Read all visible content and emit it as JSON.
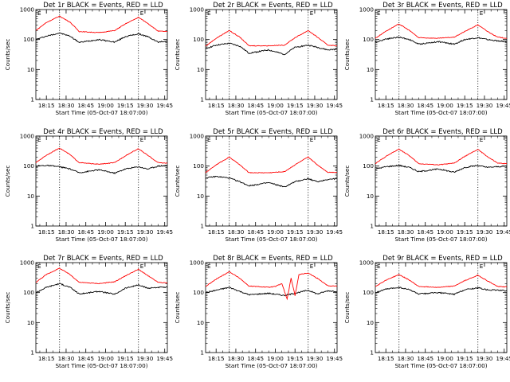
{
  "shared": {
    "xlabel": "Start Time (05-Oct-07 18:07:00)",
    "ylabel": "Counts/sec",
    "x_tick_labels": [
      "18:15",
      "18:30",
      "18:45",
      "19:00",
      "19:15",
      "19:30",
      "19:45"
    ],
    "y_tick_labels": [
      "1",
      "10",
      "100",
      "1000"
    ],
    "corner_marks": {
      "left": "E",
      "right": "E"
    },
    "colors": {
      "events": "#000000",
      "lld": "#ff0000",
      "axis": "#000000"
    }
  },
  "chart_data": [
    {
      "type": "line",
      "title": "Det 1r BLACK = Events, RED = LLD",
      "xlim": [
        "18:07",
        "19:47"
      ],
      "ylim": [
        1,
        1000
      ],
      "y_scale": "log",
      "vlines": [
        "18:25",
        "19:25"
      ],
      "series": [
        {
          "name": "Events",
          "color": "#000000",
          "lld": false,
          "x": [
            "18:07",
            "18:15",
            "18:25",
            "18:33",
            "18:40",
            "18:55",
            "19:07",
            "19:15",
            "19:25",
            "19:32",
            "19:40",
            "19:47"
          ],
          "y": [
            100,
            130,
            165,
            130,
            80,
            100,
            82,
            125,
            155,
            125,
            82,
            90
          ]
        },
        {
          "name": "LLD",
          "color": "#ff0000",
          "lld": true,
          "x": [
            "18:07",
            "18:15",
            "18:25",
            "18:33",
            "18:40",
            "18:55",
            "19:07",
            "19:15",
            "19:25",
            "19:32",
            "19:40",
            "19:47"
          ],
          "y": [
            200,
            370,
            600,
            380,
            185,
            170,
            200,
            330,
            550,
            350,
            190,
            185
          ]
        }
      ]
    },
    {
      "type": "line",
      "title": "Det 2r BLACK = Events, RED = LLD",
      "xlim": [
        "18:07",
        "19:47"
      ],
      "ylim": [
        1,
        1000
      ],
      "y_scale": "log",
      "vlines": [
        "18:25",
        "19:25"
      ],
      "series": [
        {
          "name": "Events",
          "color": "#000000",
          "lld": false,
          "x": [
            "18:07",
            "18:15",
            "18:25",
            "18:33",
            "18:40",
            "18:55",
            "19:07",
            "19:15",
            "19:25",
            "19:32",
            "19:40",
            "19:47"
          ],
          "y": [
            50,
            65,
            75,
            60,
            35,
            45,
            32,
            55,
            65,
            55,
            45,
            48
          ]
        },
        {
          "name": "LLD",
          "color": "#ff0000",
          "lld": true,
          "x": [
            "18:07",
            "18:15",
            "18:25",
            "18:33",
            "18:40",
            "18:55",
            "19:07",
            "19:15",
            "19:25",
            "19:32",
            "19:40",
            "19:47"
          ],
          "y": [
            60,
            110,
            200,
            120,
            62,
            62,
            65,
            115,
            200,
            120,
            65,
            62
          ]
        }
      ]
    },
    {
      "type": "line",
      "title": "Det 3r BLACK = Events, RED = LLD",
      "xlim": [
        "18:07",
        "19:47"
      ],
      "ylim": [
        1,
        1000
      ],
      "y_scale": "log",
      "vlines": [
        "18:25",
        "19:25"
      ],
      "series": [
        {
          "name": "Events",
          "color": "#000000",
          "lld": false,
          "x": [
            "18:07",
            "18:15",
            "18:25",
            "18:33",
            "18:40",
            "18:55",
            "19:07",
            "19:15",
            "19:25",
            "19:32",
            "19:40",
            "19:47"
          ],
          "y": [
            80,
            105,
            120,
            100,
            70,
            85,
            70,
            100,
            115,
            100,
            90,
            85
          ]
        },
        {
          "name": "LLD",
          "color": "#ff0000",
          "lld": true,
          "x": [
            "18:07",
            "18:15",
            "18:25",
            "18:33",
            "18:40",
            "18:55",
            "19:07",
            "19:15",
            "19:25",
            "19:32",
            "19:40",
            "19:47"
          ],
          "y": [
            110,
            190,
            330,
            200,
            115,
            110,
            120,
            185,
            310,
            190,
            120,
            110
          ]
        }
      ]
    },
    {
      "type": "line",
      "title": "Det 4r BLACK = Events, RED = LLD",
      "xlim": [
        "18:07",
        "19:47"
      ],
      "ylim": [
        1,
        1000
      ],
      "y_scale": "log",
      "vlines": [
        "18:25",
        "19:25"
      ],
      "series": [
        {
          "name": "Events",
          "color": "#000000",
          "lld": false,
          "x": [
            "18:07",
            "18:15",
            "18:25",
            "18:33",
            "18:40",
            "18:55",
            "19:07",
            "19:15",
            "19:25",
            "19:32",
            "19:40",
            "19:47"
          ],
          "y": [
            100,
            105,
            95,
            80,
            60,
            75,
            58,
            80,
            95,
            80,
            100,
            105
          ]
        },
        {
          "name": "LLD",
          "color": "#ff0000",
          "lld": true,
          "x": [
            "18:07",
            "18:15",
            "18:25",
            "18:33",
            "18:40",
            "18:55",
            "19:07",
            "19:15",
            "19:25",
            "19:32",
            "19:40",
            "19:47"
          ],
          "y": [
            130,
            230,
            400,
            240,
            130,
            115,
            130,
            220,
            380,
            230,
            130,
            125
          ]
        }
      ]
    },
    {
      "type": "line",
      "title": "Det 5r BLACK = Events, RED = LLD",
      "xlim": [
        "18:07",
        "19:47"
      ],
      "ylim": [
        1,
        1000
      ],
      "y_scale": "log",
      "vlines": [
        "18:25",
        "19:25"
      ],
      "series": [
        {
          "name": "Events",
          "color": "#000000",
          "lld": false,
          "x": [
            "18:07",
            "18:15",
            "18:25",
            "18:33",
            "18:40",
            "18:55",
            "19:07",
            "19:15",
            "19:25",
            "19:32",
            "19:40",
            "19:47"
          ],
          "y": [
            40,
            45,
            40,
            30,
            22,
            28,
            20,
            30,
            38,
            30,
            36,
            38
          ]
        },
        {
          "name": "LLD",
          "color": "#ff0000",
          "lld": true,
          "x": [
            "18:07",
            "18:15",
            "18:25",
            "18:33",
            "18:40",
            "18:55",
            "19:07",
            "19:15",
            "19:25",
            "19:32",
            "19:40",
            "19:47"
          ],
          "y": [
            60,
            110,
            200,
            110,
            60,
            60,
            65,
            110,
            200,
            110,
            62,
            62
          ]
        }
      ]
    },
    {
      "type": "line",
      "title": "Det 6r BLACK = Events, RED = LLD",
      "xlim": [
        "18:07",
        "19:47"
      ],
      "ylim": [
        1,
        1000
      ],
      "y_scale": "log",
      "vlines": [
        "18:25",
        "19:25"
      ],
      "series": [
        {
          "name": "Events",
          "color": "#000000",
          "lld": false,
          "x": [
            "18:07",
            "18:15",
            "18:25",
            "18:33",
            "18:40",
            "18:55",
            "19:07",
            "19:15",
            "19:25",
            "19:32",
            "19:40",
            "19:47"
          ],
          "y": [
            80,
            95,
            105,
            90,
            65,
            80,
            62,
            90,
            105,
            90,
            95,
            100
          ]
        },
        {
          "name": "LLD",
          "color": "#ff0000",
          "lld": true,
          "x": [
            "18:07",
            "18:15",
            "18:25",
            "18:33",
            "18:40",
            "18:55",
            "19:07",
            "19:15",
            "19:25",
            "19:32",
            "19:40",
            "19:47"
          ],
          "y": [
            120,
            210,
            370,
            220,
            120,
            110,
            125,
            210,
            360,
            210,
            125,
            120
          ]
        }
      ]
    },
    {
      "type": "line",
      "title": "Det 7r BLACK = Events, RED = LLD",
      "xlim": [
        "18:07",
        "19:47"
      ],
      "ylim": [
        1,
        1000
      ],
      "y_scale": "log",
      "vlines": [
        "18:25",
        "19:25"
      ],
      "series": [
        {
          "name": "Events",
          "color": "#000000",
          "lld": false,
          "x": [
            "18:07",
            "18:15",
            "18:25",
            "18:33",
            "18:40",
            "18:55",
            "19:07",
            "19:15",
            "19:25",
            "19:32",
            "19:40",
            "19:47"
          ],
          "y": [
            100,
            150,
            200,
            150,
            90,
            110,
            88,
            140,
            180,
            140,
            150,
            150
          ]
        },
        {
          "name": "LLD",
          "color": "#ff0000",
          "lld": true,
          "x": [
            "18:07",
            "18:15",
            "18:25",
            "18:33",
            "18:40",
            "18:55",
            "19:07",
            "19:15",
            "19:25",
            "19:32",
            "19:40",
            "19:47"
          ],
          "y": [
            220,
            400,
            650,
            400,
            220,
            200,
            230,
            360,
            600,
            370,
            220,
            210
          ]
        }
      ]
    },
    {
      "type": "line",
      "title": "Det 8r BLACK = Events, RED = LLD",
      "xlim": [
        "18:07",
        "19:47"
      ],
      "ylim": [
        1,
        1000
      ],
      "y_scale": "log",
      "vlines": [
        "18:25",
        "19:25"
      ],
      "series": [
        {
          "name": "Events",
          "color": "#000000",
          "lld": false,
          "x": [
            "18:07",
            "18:15",
            "18:25",
            "18:33",
            "18:40",
            "18:55",
            "19:07",
            "19:15",
            "19:25",
            "19:32",
            "19:40",
            "19:47"
          ],
          "y": [
            100,
            120,
            150,
            110,
            85,
            95,
            80,
            95,
            120,
            90,
            115,
            110
          ]
        },
        {
          "name": "LLD",
          "color": "#ff0000",
          "lld": true,
          "x": [
            "18:07",
            "18:15",
            "18:25",
            "18:33",
            "18:40",
            "18:55",
            "19:00",
            "19:05",
            "19:09",
            "19:12",
            "19:15",
            "19:18",
            "19:25",
            "19:32",
            "19:40",
            "19:47"
          ],
          "y": [
            160,
            280,
            500,
            300,
            165,
            150,
            160,
            200,
            60,
            300,
            80,
            400,
            450,
            300,
            170,
            165
          ]
        }
      ]
    },
    {
      "type": "line",
      "title": "Det 9r BLACK = Events, RED = LLD",
      "xlim": [
        "18:07",
        "19:47"
      ],
      "ylim": [
        1,
        1000
      ],
      "y_scale": "log",
      "vlines": [
        "18:25",
        "19:25"
      ],
      "series": [
        {
          "name": "Events",
          "color": "#000000",
          "lld": false,
          "x": [
            "18:07",
            "18:15",
            "18:25",
            "18:33",
            "18:40",
            "18:55",
            "19:07",
            "19:15",
            "19:25",
            "19:32",
            "19:40",
            "19:47"
          ],
          "y": [
            100,
            130,
            150,
            125,
            90,
            100,
            88,
            125,
            145,
            125,
            120,
            115
          ]
        },
        {
          "name": "LLD",
          "color": "#ff0000",
          "lld": true,
          "x": [
            "18:07",
            "18:15",
            "18:25",
            "18:33",
            "18:40",
            "18:55",
            "19:07",
            "19:15",
            "19:25",
            "19:32",
            "19:40",
            "19:47"
          ],
          "y": [
            160,
            260,
            400,
            260,
            160,
            150,
            165,
            250,
            380,
            250,
            160,
            155
          ]
        }
      ]
    }
  ]
}
